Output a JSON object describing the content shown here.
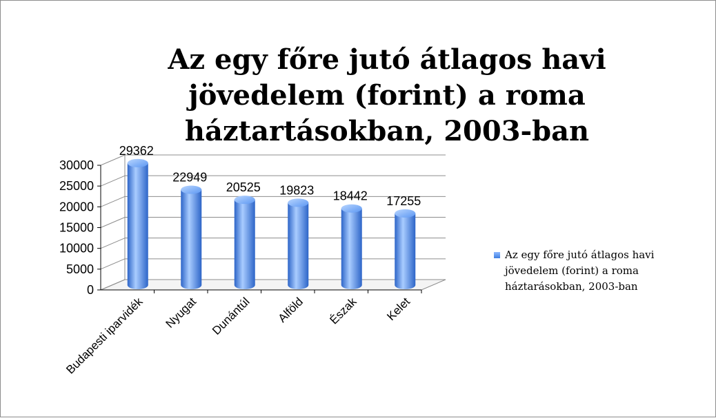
{
  "chart_data": {
    "type": "bar",
    "style": "3d-cylinder",
    "title": "Az egy főre jutó átlagos havi jövedelem (forint) a roma háztartásokban, 2003-ban",
    "categories": [
      "Budapesti iparvidék",
      "Nyugat",
      "Dunántúl",
      "Alföld",
      "Észak",
      "Kelet"
    ],
    "series": [
      {
        "name": "Az egy főre jutó átlagos havi jövedelem (forint) a roma háztarásokban, 2003-ban",
        "values": [
          29362,
          22949,
          20525,
          19823,
          18442,
          17255
        ]
      }
    ],
    "ylim": [
      0,
      30000
    ],
    "yticks": [
      0,
      5000,
      10000,
      15000,
      20000,
      25000,
      30000
    ],
    "grid": true,
    "legend_position": "right",
    "colors": {
      "bar_light": "#a9ccff",
      "bar_mid": "#5c97f2",
      "bar_dark": "#2d65c8",
      "grid": "#8c8c8c"
    }
  }
}
